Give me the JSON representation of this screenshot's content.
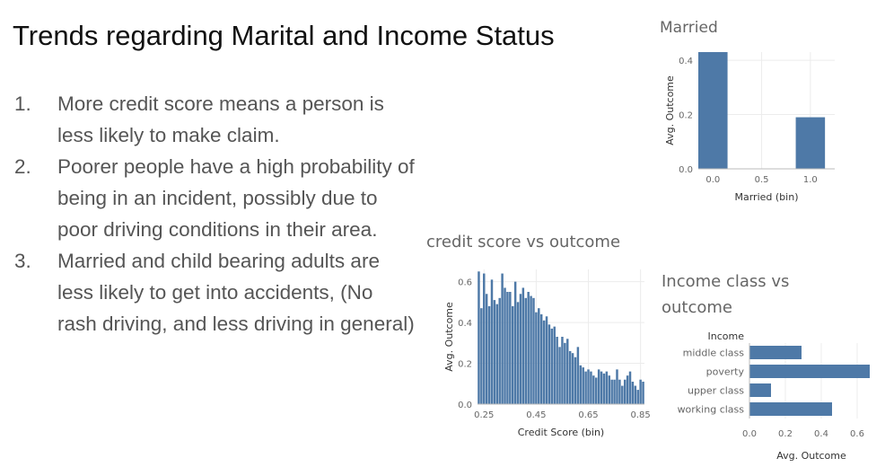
{
  "slide": {
    "title": "Trends regarding Marital and Income Status",
    "points": [
      {
        "num": "1.",
        "text": "More credit score means a person is less likely to make claim."
      },
      {
        "num": "2.",
        "text": "Poorer people have a high probability of being in an incident, possibly due to poor driving conditions in their area."
      },
      {
        "num": "3.",
        "text": "Married and child bearing adults are less likely to get into accidents, (No rash driving, and less driving in general)"
      }
    ]
  },
  "colors": {
    "bar": "#4e79a7",
    "grid": "#ececec",
    "axis": "#bbbbbb"
  },
  "chart_data": [
    {
      "id": "married",
      "type": "bar",
      "title": "Married",
      "xlabel": "Married (bin)",
      "ylabel": "Avg. Outcome",
      "bins": [
        0.0,
        1.0
      ],
      "values": [
        0.43,
        0.19
      ],
      "bin_width": 0.3,
      "xticks": [
        "0.0",
        "0.5",
        "1.0"
      ],
      "xtick_values": [
        0.0,
        0.5,
        1.0
      ],
      "xlim": [
        -0.15,
        1.25
      ],
      "yticks": [
        "0.0",
        "0.2",
        "0.4"
      ],
      "ytick_values": [
        0.0,
        0.2,
        0.4
      ],
      "ylim": [
        0,
        0.43
      ]
    },
    {
      "id": "credit",
      "type": "bar",
      "title": "credit score vs outcome",
      "xlabel": "Credit Score (bin)",
      "ylabel": "Avg. Outcome",
      "bins": [
        0.23,
        0.24,
        0.25,
        0.26,
        0.27,
        0.28,
        0.29,
        0.3,
        0.31,
        0.32,
        0.33,
        0.34,
        0.35,
        0.36,
        0.37,
        0.38,
        0.39,
        0.4,
        0.41,
        0.42,
        0.43,
        0.44,
        0.45,
        0.46,
        0.47,
        0.48,
        0.49,
        0.5,
        0.51,
        0.52,
        0.53,
        0.54,
        0.55,
        0.56,
        0.57,
        0.58,
        0.59,
        0.6,
        0.61,
        0.62,
        0.63,
        0.64,
        0.65,
        0.66,
        0.67,
        0.68,
        0.69,
        0.7,
        0.71,
        0.72,
        0.73,
        0.74,
        0.75,
        0.76,
        0.77,
        0.78,
        0.79,
        0.8,
        0.81,
        0.82,
        0.83,
        0.84,
        0.85,
        0.86
      ],
      "values": [
        0.65,
        0.47,
        0.64,
        0.54,
        0.48,
        0.61,
        0.51,
        0.49,
        0.52,
        0.64,
        0.57,
        0.55,
        0.55,
        0.48,
        0.6,
        0.5,
        0.54,
        0.57,
        0.52,
        0.55,
        0.53,
        0.52,
        0.45,
        0.47,
        0.44,
        0.41,
        0.43,
        0.39,
        0.37,
        0.38,
        0.33,
        0.28,
        0.33,
        0.3,
        0.32,
        0.26,
        0.25,
        0.23,
        0.28,
        0.19,
        0.18,
        0.16,
        0.17,
        0.16,
        0.14,
        0.13,
        0.17,
        0.16,
        0.15,
        0.16,
        0.14,
        0.12,
        0.12,
        0.17,
        0.12,
        0.09,
        0.12,
        0.14,
        0.16,
        0.11,
        0.09,
        0.07,
        0.12,
        0.11
      ],
      "bin_width": 0.0085,
      "xticks": [
        "0.25",
        "0.45",
        "0.65",
        "0.85"
      ],
      "xtick_values": [
        0.25,
        0.45,
        0.65,
        0.85
      ],
      "xlim": [
        0.225,
        0.865
      ],
      "yticks": [
        "0.0",
        "0.2",
        "0.4",
        "0.6"
      ],
      "ytick_values": [
        0.0,
        0.2,
        0.4,
        0.6
      ],
      "ylim": [
        0,
        0.66
      ]
    },
    {
      "id": "income",
      "type": "bar",
      "orientation": "horizontal",
      "title_lines": [
        "Income class vs",
        "outcome"
      ],
      "category_header": "Income",
      "xlabel": "Avg. Outcome",
      "categories": [
        "middle class",
        "poverty",
        "upper class",
        "working class"
      ],
      "values": [
        0.29,
        0.67,
        0.12,
        0.46
      ],
      "xticks": [
        "0.0",
        "0.2",
        "0.4",
        "0.6"
      ],
      "xtick_values": [
        0.0,
        0.2,
        0.4,
        0.6
      ],
      "xlim": [
        0,
        0.69
      ]
    }
  ]
}
